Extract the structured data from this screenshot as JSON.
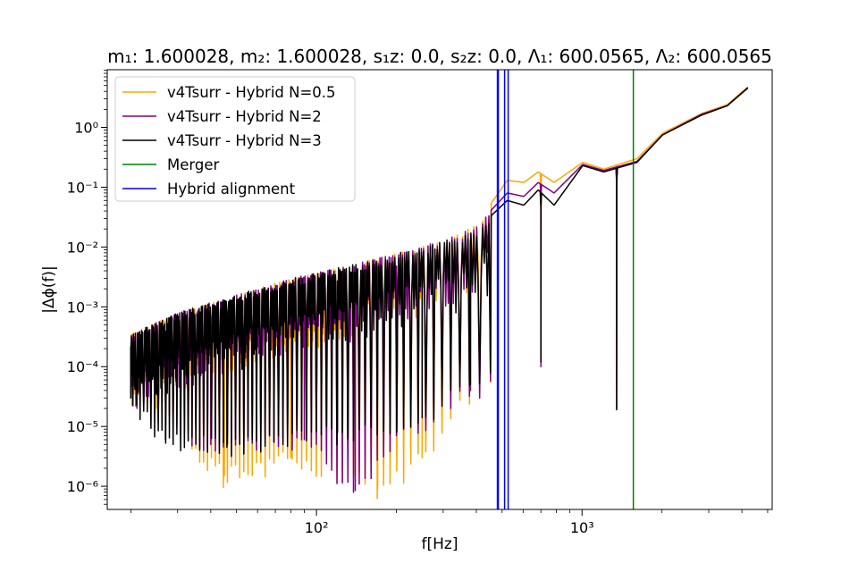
{
  "chart_data": {
    "type": "line",
    "title": "m₁: 1.600028, m₂: 1.600028, s₁z: 0.0, s₂z: 0.0, Λ₁: 600.0565, Λ₂: 600.0565",
    "xlabel": "f[Hz]",
    "ylabel": "|Δϕ(f)|",
    "xscale": "log",
    "yscale": "log",
    "xlim": [
      16.3,
      5200
    ],
    "ylim": [
      4.1e-07,
      9.2
    ],
    "grid": false,
    "legend_position": "top-left",
    "x_ticks": [
      {
        "value": 100,
        "label": "10²"
      },
      {
        "value": 1000,
        "label": "10³"
      }
    ],
    "y_ticks": [
      {
        "value": 1e-06,
        "label": "10⁻⁶"
      },
      {
        "value": 1e-05,
        "label": "10⁻⁵"
      },
      {
        "value": 0.0001,
        "label": "10⁻⁴"
      },
      {
        "value": 0.001,
        "label": "10⁻³"
      },
      {
        "value": 0.01,
        "label": "10⁻²"
      },
      {
        "value": 0.1,
        "label": "10⁻¹"
      },
      {
        "value": 1,
        "label": "10⁰"
      }
    ],
    "series": [
      {
        "name": "v4Tsurr - Hybrid N=0.5",
        "color": "#ffa500",
        "envelope_points": [
          [
            20,
            0.00035
          ],
          [
            30,
            0.0008
          ],
          [
            50,
            0.0016
          ],
          [
            80,
            0.003
          ],
          [
            120,
            0.0045
          ],
          [
            200,
            0.008
          ],
          [
            300,
            0.013
          ],
          [
            400,
            0.025
          ],
          [
            520,
            0.13
          ],
          [
            600,
            0.12
          ],
          [
            680,
            0.18
          ],
          [
            780,
            0.12
          ],
          [
            1000,
            0.26
          ],
          [
            1200,
            0.2
          ],
          [
            1600,
            0.3
          ],
          [
            2000,
            0.8
          ],
          [
            2800,
            1.7
          ],
          [
            3500,
            2.4
          ],
          [
            4200,
            4.8
          ]
        ],
        "min_points": [
          [
            20,
            3e-05
          ],
          [
            25,
            2e-05
          ],
          [
            45,
            1.5e-06
          ],
          [
            80,
            3e-06
          ],
          [
            140,
            1.5e-06
          ],
          [
            170,
            9e-07
          ],
          [
            250,
            3e-06
          ],
          [
            380,
            4e-05
          ],
          [
            700,
            0.00012
          ],
          [
            1350,
            5e-05
          ]
        ]
      },
      {
        "name": "v4Tsurr - Hybrid N=2",
        "color": "#800080",
        "envelope_points": [
          [
            20,
            0.00035
          ],
          [
            30,
            0.0008
          ],
          [
            50,
            0.0016
          ],
          [
            80,
            0.003
          ],
          [
            120,
            0.0045
          ],
          [
            200,
            0.008
          ],
          [
            300,
            0.013
          ],
          [
            400,
            0.023
          ],
          [
            520,
            0.08
          ],
          [
            600,
            0.07
          ],
          [
            680,
            0.12
          ],
          [
            780,
            0.08
          ],
          [
            1000,
            0.24
          ],
          [
            1200,
            0.19
          ],
          [
            1600,
            0.27
          ],
          [
            2000,
            0.75
          ],
          [
            2800,
            1.65
          ],
          [
            3500,
            2.3
          ],
          [
            4200,
            4.7
          ]
        ],
        "min_points": [
          [
            20,
            3e-05
          ],
          [
            40,
            5e-06
          ],
          [
            90,
            6e-06
          ],
          [
            140,
            8.5e-07
          ],
          [
            200,
            7e-06
          ],
          [
            380,
            4e-05
          ],
          [
            700,
            0.0001
          ],
          [
            1350,
            2e-05
          ]
        ]
      },
      {
        "name": "v4Tsurr - Hybrid N=3",
        "color": "#000000",
        "envelope_points": [
          [
            20,
            0.00035
          ],
          [
            30,
            0.0008
          ],
          [
            50,
            0.0016
          ],
          [
            80,
            0.003
          ],
          [
            120,
            0.0045
          ],
          [
            200,
            0.008
          ],
          [
            300,
            0.013
          ],
          [
            400,
            0.02
          ],
          [
            520,
            0.06
          ],
          [
            600,
            0.05
          ],
          [
            680,
            0.09
          ],
          [
            780,
            0.05
          ],
          [
            1000,
            0.23
          ],
          [
            1200,
            0.18
          ],
          [
            1600,
            0.26
          ],
          [
            2000,
            0.75
          ],
          [
            2800,
            1.6
          ],
          [
            3500,
            2.3
          ],
          [
            4200,
            4.6
          ]
        ],
        "min_points": [
          [
            20,
            3e-05
          ],
          [
            27,
            6e-06
          ],
          [
            46,
            4.5e-06
          ],
          [
            120,
            8e-06
          ],
          [
            250,
            1.4e-05
          ],
          [
            380,
            5e-05
          ],
          [
            700,
            0.00012
          ],
          [
            1350,
            1.9e-05
          ]
        ]
      },
      {
        "name": "Merger",
        "color": "#008000",
        "x": 1560
      },
      {
        "name": "Hybrid alignment",
        "color": "#0000ff",
        "x": [
          482,
          511,
          527
        ]
      }
    ]
  }
}
